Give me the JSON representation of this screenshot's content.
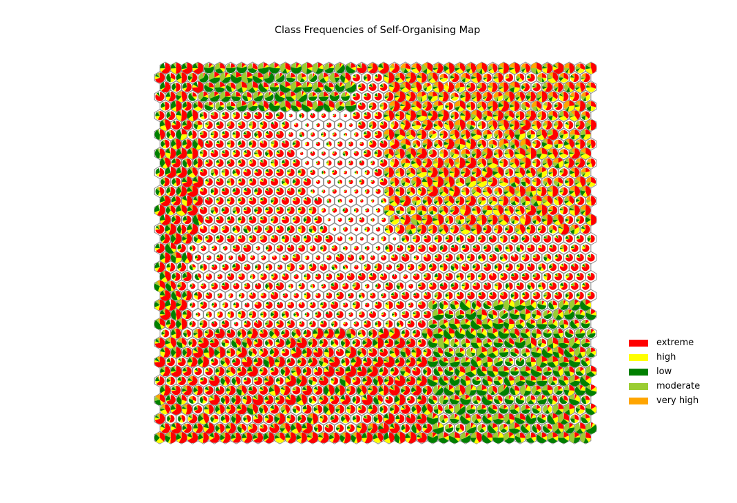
{
  "chart_data": {
    "type": "som-pie-hexbin",
    "title": "Class Frequencies of Self-Organising Map",
    "grid": {
      "columns": 40,
      "rows": 40,
      "cell_shape": "hexagon",
      "cell_content": "pie of class frequencies"
    },
    "classes": [
      {
        "name": "extreme",
        "color": "#ff0000"
      },
      {
        "name": "high",
        "color": "#ffff00"
      },
      {
        "name": "low",
        "color": "#008000"
      },
      {
        "name": "moderate",
        "color": "#9acd32"
      },
      {
        "name": "very high",
        "color": "#ffa500"
      }
    ],
    "legend_position": "right",
    "axes": "off"
  }
}
